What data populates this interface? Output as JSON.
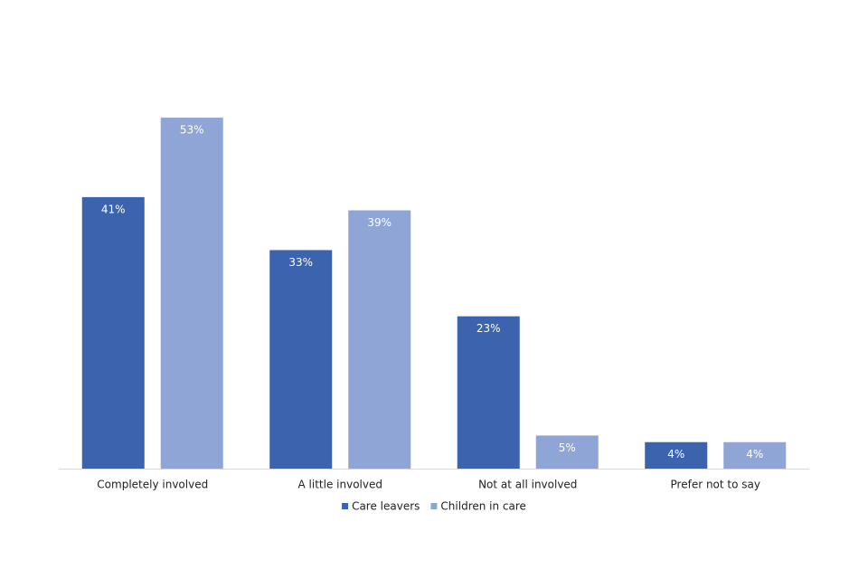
{
  "chart_data": {
    "type": "bar",
    "categories": [
      "Completely involved",
      "A little involved",
      "Not at all involved",
      "Prefer not to say"
    ],
    "series": [
      {
        "name": "Care leavers",
        "color": "#3c63ae",
        "values": [
          41,
          33,
          23,
          4
        ],
        "value_labels": [
          "41%",
          "33%",
          "23%",
          "4%"
        ]
      },
      {
        "name": "Children in care",
        "color": "#8fa5d6",
        "values": [
          53,
          39,
          5,
          4
        ],
        "value_labels": [
          "53%",
          "39%",
          "5%",
          "4%"
        ]
      }
    ],
    "legend": "bottom"
  }
}
